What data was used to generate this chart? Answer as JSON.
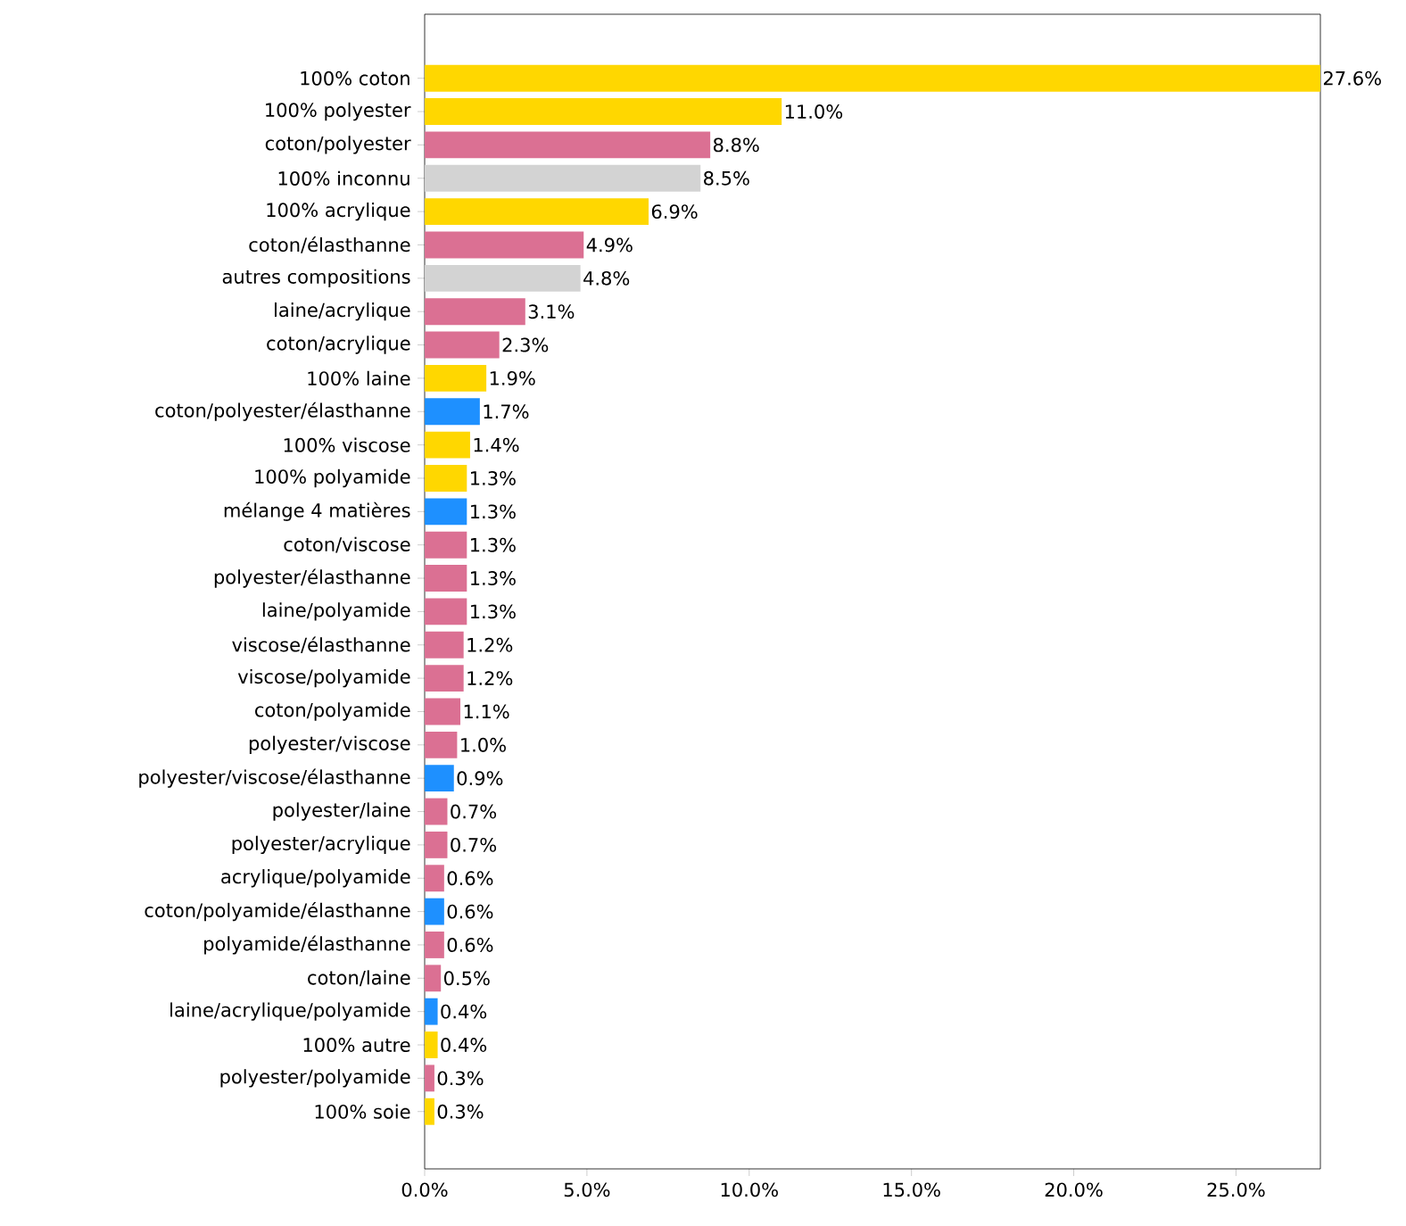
{
  "chart_data": {
    "type": "bar",
    "orientation": "horizontal",
    "categories": [
      "100% coton",
      "100% polyester",
      "coton/polyester",
      "100% inconnu",
      "100% acrylique",
      "coton/élasthanne",
      "autres compositions",
      "laine/acrylique",
      "coton/acrylique",
      "100% laine",
      "coton/polyester/élasthanne",
      "100% viscose",
      "100% polyamide",
      "mélange 4 matières",
      "coton/viscose",
      "polyester/élasthanne",
      "laine/polyamide",
      "viscose/élasthanne",
      "viscose/polyamide",
      "coton/polyamide",
      "polyester/viscose",
      "polyester/viscose/élasthanne",
      "polyester/laine",
      "polyester/acrylique",
      "acrylique/polyamide",
      "coton/polyamide/élasthanne",
      "polyamide/élasthanne",
      "coton/laine",
      "laine/acrylique/polyamide",
      "100% autre",
      "polyester/polyamide",
      "100% soie"
    ],
    "values": [
      27.6,
      11.0,
      8.8,
      8.5,
      6.9,
      4.9,
      4.8,
      3.1,
      2.3,
      1.9,
      1.7,
      1.4,
      1.3,
      1.3,
      1.3,
      1.3,
      1.3,
      1.2,
      1.2,
      1.1,
      1.0,
      0.9,
      0.7,
      0.7,
      0.6,
      0.6,
      0.6,
      0.5,
      0.4,
      0.4,
      0.3,
      0.3
    ],
    "value_labels": [
      "27.6%",
      "11.0%",
      "8.8%",
      "8.5%",
      "6.9%",
      "4.9%",
      "4.8%",
      "3.1%",
      "2.3%",
      "1.9%",
      "1.7%",
      "1.4%",
      "1.3%",
      "1.3%",
      "1.3%",
      "1.3%",
      "1.3%",
      "1.2%",
      "1.2%",
      "1.1%",
      "1.0%",
      "0.9%",
      "0.7%",
      "0.7%",
      "0.6%",
      "0.6%",
      "0.6%",
      "0.5%",
      "0.4%",
      "0.4%",
      "0.3%",
      "0.3%"
    ],
    "colors": [
      "#ffd700",
      "#ffd700",
      "#db7093",
      "#d3d3d3",
      "#ffd700",
      "#db7093",
      "#d3d3d3",
      "#db7093",
      "#db7093",
      "#ffd700",
      "#1e90ff",
      "#ffd700",
      "#ffd700",
      "#1e90ff",
      "#db7093",
      "#db7093",
      "#db7093",
      "#db7093",
      "#db7093",
      "#db7093",
      "#db7093",
      "#1e90ff",
      "#db7093",
      "#db7093",
      "#db7093",
      "#1e90ff",
      "#db7093",
      "#db7093",
      "#1e90ff",
      "#ffd700",
      "#db7093",
      "#ffd700"
    ],
    "xlim": [
      0,
      27.6
    ],
    "xticks": [
      {
        "value": 0,
        "label": "0.0%"
      },
      {
        "value": 5,
        "label": "5.0%"
      },
      {
        "value": 10,
        "label": "10.0%"
      },
      {
        "value": 15,
        "label": "15.0%"
      },
      {
        "value": 20,
        "label": "20.0%"
      },
      {
        "value": 25,
        "label": "25.0%"
      }
    ]
  }
}
